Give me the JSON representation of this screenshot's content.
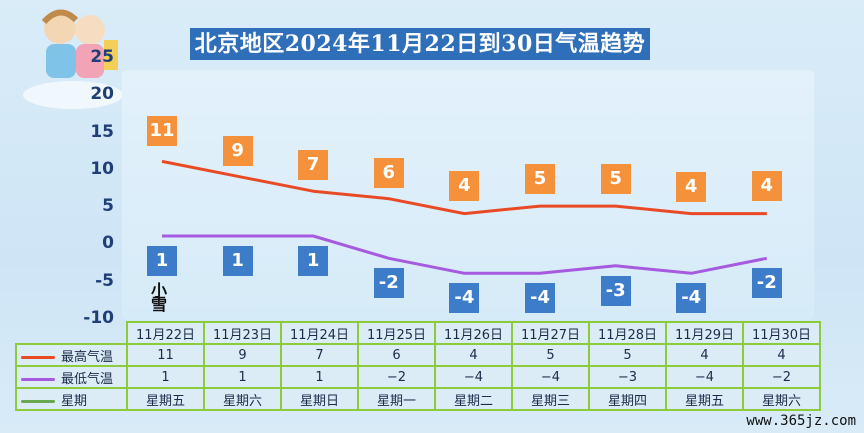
{
  "title": "北京地区2024年11月22日到30日气温趋势",
  "weather_note": "小雪",
  "site": "www.365jz.com",
  "colors": {
    "high": "#e94a26",
    "low": "#a55ae0",
    "week": "#6aa84f",
    "high_box": "#f5913a",
    "low_box": "#3d7cc9"
  },
  "table": {
    "row_labels": [
      "最高气温",
      "最低气温",
      "星期"
    ],
    "weekdays": [
      "星期五",
      "星期六",
      "星期日",
      "星期一",
      "星期二",
      "星期三",
      "星期四",
      "星期五",
      "星期六"
    ],
    "high_display": [
      "11",
      "9",
      "7",
      "6",
      "4",
      "5",
      "5",
      "4",
      "4"
    ],
    "low_display": [
      "1",
      "1",
      "1",
      "−2",
      "−4",
      "−4",
      "−3",
      "−4",
      "−2"
    ]
  },
  "chart_data": {
    "type": "line",
    "title": "北京地区2024年11月22日到30日气温趋势",
    "categories": [
      "11月22日",
      "11月23日",
      "11月24日",
      "11月25日",
      "11月26日",
      "11月27日",
      "11月28日",
      "11月29日",
      "11月30日"
    ],
    "series": [
      {
        "name": "最高气温",
        "values": [
          11,
          9,
          7,
          6,
          4,
          5,
          5,
          4,
          4
        ]
      },
      {
        "name": "最低气温",
        "values": [
          1,
          1,
          1,
          -2,
          -4,
          -4,
          -3,
          -4,
          -2
        ]
      }
    ],
    "data_labels_high": [
      "11",
      "9",
      "7",
      "6",
      "4",
      "5",
      "5",
      "4",
      "4"
    ],
    "data_labels_low": [
      "1",
      "1",
      "1",
      "-2",
      "-4",
      "-4",
      "-3",
      "-4",
      "-2"
    ],
    "yticks": [
      "25",
      "20",
      "15",
      "10",
      "5",
      "0",
      "-5",
      "-10"
    ],
    "ylim": [
      -10,
      25
    ],
    "grid": false
  }
}
